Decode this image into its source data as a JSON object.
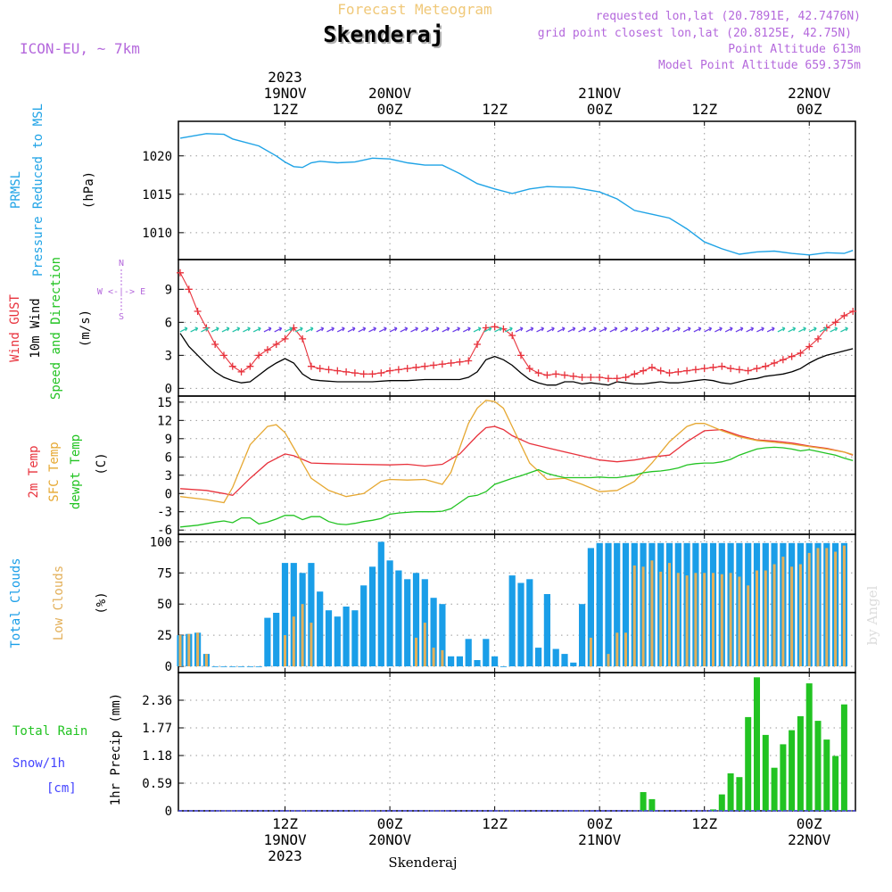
{
  "header": {
    "model": "ICON-EU, ~ 7km",
    "subtitle": "Forecast Meteogram",
    "title": "Skenderaj",
    "requested": "requested lon,lat (20.7891E, 42.7476N)",
    "gridpoint": "grid point closest lon,lat (20.8125E, 42.75N)",
    "point_alt": "Point Altitude 613m",
    "model_alt": "Model Point Altitude 659.375m",
    "footer_location": "Skenderaj",
    "watermark": "by Angel"
  },
  "time_axis": {
    "top_labels": [
      {
        "t": 12,
        "lines": [
          "2023",
          "19NOV",
          "12Z"
        ]
      },
      {
        "t": 24,
        "lines": [
          "20NOV",
          "00Z"
        ]
      },
      {
        "t": 36,
        "lines": [
          "12Z"
        ]
      },
      {
        "t": 48,
        "lines": [
          "21NOV",
          "00Z"
        ]
      },
      {
        "t": 60,
        "lines": [
          "12Z"
        ]
      },
      {
        "t": 72,
        "lines": [
          "22NOV",
          "00Z"
        ]
      }
    ],
    "bottom_labels": [
      {
        "t": 12,
        "lines": [
          "12Z",
          "19NOV",
          "2023"
        ]
      },
      {
        "t": 24,
        "lines": [
          "00Z",
          "20NOV"
        ]
      },
      {
        "t": 36,
        "lines": [
          "12Z"
        ]
      },
      {
        "t": 48,
        "lines": [
          "00Z",
          "21NOV"
        ]
      },
      {
        "t": 60,
        "lines": [
          "12Z"
        ]
      },
      {
        "t": 72,
        "lines": [
          "00Z",
          "22NOV"
        ]
      }
    ]
  },
  "panel_labels": {
    "pressure": {
      "left": [
        "PRMSL",
        "Pressure Reduced to MSL"
      ],
      "unit": "(hPa)"
    },
    "wind": {
      "gust": "Wind GUST",
      "wind10": "10m Wind",
      "speed": "Speed and Direction",
      "unit": "(m/s)",
      "compass_n": "N",
      "compass_s": "S",
      "compass_we": "W <-|-> E"
    },
    "temp": {
      "t2m": "2m Temp",
      "sfc": "SFC Temp",
      "dewpt": "dewpt Temp",
      "unit": "(C)"
    },
    "clouds": {
      "total": "Total Clouds",
      "low": "Low Clouds",
      "unit": "(%)"
    },
    "precip": {
      "rain": "Total  Rain",
      "snow": "Snow/1h",
      "cm": "[cm]",
      "axis": "1hr Precip (mm)"
    }
  },
  "colors": {
    "pressure": "#1fa3e6",
    "gust": "#e8323c",
    "wind": "#000000",
    "t2m": "#e8323c",
    "sfc": "#e6a832",
    "dewpt": "#22c322",
    "total_cloud": "#1a9ee8",
    "low_cloud": "#e3b05a",
    "rain": "#22c322",
    "snow": "#4444ff",
    "violet": "#b468dc"
  },
  "chart_data": [
    {
      "type": "line",
      "title": "PRMSL Pressure Reduced to MSL",
      "ylabel": "(hPa)",
      "yticks": [
        1010,
        1015,
        1020
      ],
      "ylim": [
        1006.5,
        1024.5
      ],
      "x_hours": [
        0,
        3,
        5,
        6,
        9,
        11,
        12,
        13,
        14,
        15,
        16,
        18,
        20,
        22,
        24,
        26,
        28,
        30,
        32,
        34,
        36,
        38,
        40,
        42,
        45,
        48,
        50,
        52,
        54,
        56,
        58,
        60,
        62,
        64,
        66,
        68,
        70,
        72,
        74,
        76,
        77
      ],
      "values": [
        1022.3,
        1022.9,
        1022.8,
        1022.2,
        1021.3,
        1020.0,
        1019.2,
        1018.6,
        1018.5,
        1019.1,
        1019.3,
        1019.1,
        1019.2,
        1019.7,
        1019.6,
        1019.1,
        1018.8,
        1018.8,
        1017.7,
        1016.4,
        1015.7,
        1015.1,
        1015.7,
        1016.0,
        1015.9,
        1015.3,
        1014.4,
        1012.9,
        1012.4,
        1011.9,
        1010.5,
        1008.8,
        1007.9,
        1007.2,
        1007.5,
        1007.6,
        1007.3,
        1007.1,
        1007.4,
        1007.3,
        1007.7
      ]
    },
    {
      "type": "line",
      "title": "Wind GUST / 10m Wind Speed and Direction",
      "ylabel": "(m/s)",
      "yticks": [
        0,
        3,
        6,
        9
      ],
      "ylim": [
        -0.7,
        11.7
      ],
      "series": [
        {
          "name": "Wind GUST",
          "x_hours": [
            0,
            1,
            2,
            3,
            4,
            5,
            6,
            7,
            8,
            9,
            10,
            11,
            12,
            13,
            14,
            15,
            16,
            17,
            18,
            19,
            20,
            21,
            22,
            23,
            24,
            25,
            26,
            27,
            28,
            29,
            30,
            31,
            32,
            33,
            34,
            35,
            36,
            37,
            38,
            39,
            40,
            41,
            42,
            43,
            44,
            45,
            46,
            47,
            48,
            49,
            50,
            51,
            52,
            53,
            54,
            55,
            56,
            57,
            58,
            59,
            60,
            61,
            62,
            63,
            64,
            65,
            66,
            67,
            68,
            69,
            70,
            71,
            72,
            73,
            74,
            75,
            76,
            77
          ],
          "values": [
            10.5,
            9.0,
            7.0,
            5.5,
            4.0,
            3.0,
            2.0,
            1.5,
            2.0,
            3.0,
            3.5,
            4.0,
            4.5,
            5.5,
            4.5,
            2.0,
            1.8,
            1.7,
            1.6,
            1.5,
            1.4,
            1.3,
            1.3,
            1.4,
            1.6,
            1.7,
            1.8,
            1.9,
            2.0,
            2.1,
            2.2,
            2.3,
            2.4,
            2.5,
            4.0,
            5.5,
            5.6,
            5.4,
            4.8,
            3.0,
            1.8,
            1.4,
            1.2,
            1.3,
            1.2,
            1.1,
            1.0,
            1.0,
            1.0,
            0.9,
            0.9,
            1.0,
            1.3,
            1.6,
            1.9,
            1.6,
            1.4,
            1.5,
            1.6,
            1.7,
            1.8,
            1.9,
            2.0,
            1.8,
            1.7,
            1.6,
            1.8,
            2.0,
            2.3,
            2.6,
            2.9,
            3.2,
            3.8,
            4.5,
            5.5,
            6.0,
            6.6,
            7.0
          ]
        },
        {
          "name": "10m Wind",
          "x_hours": [
            0,
            1,
            2,
            3,
            4,
            5,
            6,
            7,
            8,
            9,
            10,
            11,
            12,
            13,
            14,
            15,
            16,
            18,
            20,
            22,
            24,
            26,
            28,
            30,
            32,
            33,
            34,
            35,
            36,
            37,
            38,
            39,
            40,
            41,
            42,
            43,
            44,
            45,
            46,
            47,
            48,
            49,
            50,
            51,
            52,
            53,
            54,
            55,
            56,
            57,
            58,
            59,
            60,
            61,
            62,
            63,
            64,
            65,
            66,
            67,
            68,
            69,
            70,
            71,
            72,
            73,
            74,
            75,
            76,
            77
          ],
          "values": [
            5.0,
            3.8,
            3.0,
            2.2,
            1.5,
            1.0,
            0.7,
            0.5,
            0.6,
            1.2,
            1.8,
            2.3,
            2.7,
            2.3,
            1.3,
            0.8,
            0.7,
            0.6,
            0.6,
            0.6,
            0.7,
            0.7,
            0.8,
            0.8,
            0.8,
            1.0,
            1.5,
            2.6,
            2.9,
            2.6,
            2.1,
            1.4,
            0.8,
            0.5,
            0.3,
            0.3,
            0.6,
            0.6,
            0.4,
            0.5,
            0.4,
            0.3,
            0.6,
            0.5,
            0.4,
            0.4,
            0.5,
            0.6,
            0.5,
            0.5,
            0.6,
            0.7,
            0.8,
            0.7,
            0.5,
            0.4,
            0.6,
            0.8,
            0.9,
            1.1,
            1.2,
            1.3,
            1.5,
            1.8,
            2.3,
            2.7,
            3.0,
            3.2,
            3.4,
            3.6
          ]
        }
      ]
    },
    {
      "type": "line",
      "title": "2m Temp / SFC Temp / dewpt Temp",
      "ylabel": "(C)",
      "yticks": [
        -6,
        -3,
        0,
        3,
        6,
        9,
        12,
        15
      ],
      "ylim": [
        -6.7,
        16.0
      ],
      "series": [
        {
          "name": "2m Temp",
          "x_hours": [
            0,
            3,
            5,
            6,
            8,
            10,
            12,
            13,
            15,
            17,
            20,
            24,
            26,
            28,
            30,
            32,
            34,
            35,
            36,
            37,
            38,
            40,
            42,
            45,
            48,
            50,
            52,
            54,
            56,
            58,
            60,
            62,
            64,
            66,
            68,
            70,
            72,
            74,
            76,
            77
          ],
          "values": [
            0.8,
            0.5,
            0.0,
            -0.3,
            2.5,
            5.0,
            6.5,
            6.2,
            5.0,
            4.9,
            4.8,
            4.7,
            4.8,
            4.5,
            4.8,
            6.5,
            9.5,
            10.8,
            11.0,
            10.5,
            9.5,
            8.2,
            7.5,
            6.5,
            5.5,
            5.2,
            5.5,
            6.0,
            6.3,
            8.5,
            10.3,
            10.5,
            9.5,
            8.8,
            8.6,
            8.3,
            7.8,
            7.4,
            6.8,
            6.3
          ]
        },
        {
          "name": "SFC Temp",
          "x_hours": [
            0,
            3,
            5,
            6,
            8,
            10,
            11,
            12,
            13,
            15,
            17,
            19,
            21,
            23,
            24,
            26,
            28,
            30,
            31,
            32,
            33,
            34,
            35,
            36,
            37,
            38,
            40,
            42,
            44,
            46,
            48,
            50,
            52,
            54,
            56,
            58,
            59,
            60,
            62,
            64,
            66,
            68,
            70,
            72,
            74,
            76,
            77
          ],
          "values": [
            -0.5,
            -1.0,
            -1.5,
            1.0,
            8.0,
            11.0,
            11.3,
            10.0,
            7.5,
            2.5,
            0.5,
            -0.5,
            0.0,
            2.0,
            2.3,
            2.2,
            2.3,
            1.5,
            3.5,
            7.5,
            11.5,
            14.0,
            15.3,
            15.1,
            14.0,
            11.0,
            5.0,
            2.3,
            2.5,
            1.5,
            0.3,
            0.5,
            2.0,
            5.0,
            8.5,
            11.0,
            11.5,
            11.5,
            10.3,
            9.3,
            8.7,
            8.4,
            8.1,
            7.7,
            7.3,
            6.8,
            6.4
          ]
        },
        {
          "name": "dewpt Temp",
          "x_hours": [
            0,
            2,
            4,
            5,
            6,
            7,
            8,
            9,
            10,
            11,
            12,
            13,
            14,
            15,
            16,
            17,
            18,
            19,
            20,
            21,
            22,
            23,
            24,
            25,
            26,
            27,
            28,
            29,
            30,
            31,
            32,
            33,
            34,
            35,
            36,
            37,
            38,
            39,
            40,
            41,
            42,
            43,
            44,
            45,
            46,
            47,
            48,
            49,
            50,
            51,
            52,
            53,
            54,
            55,
            56,
            57,
            58,
            59,
            60,
            61,
            62,
            63,
            64,
            65,
            66,
            67,
            68,
            69,
            70,
            71,
            72,
            73,
            74,
            75,
            76,
            77
          ],
          "values": [
            -5.5,
            -5.2,
            -4.7,
            -4.5,
            -4.8,
            -4.0,
            -4.0,
            -5.0,
            -4.7,
            -4.2,
            -3.6,
            -3.6,
            -4.3,
            -3.8,
            -3.8,
            -4.6,
            -5.0,
            -5.1,
            -4.9,
            -4.6,
            -4.4,
            -4.1,
            -3.4,
            -3.2,
            -3.1,
            -3.0,
            -3.0,
            -3.0,
            -2.9,
            -2.5,
            -1.5,
            -0.5,
            -0.3,
            0.3,
            1.5,
            2.0,
            2.5,
            2.9,
            3.4,
            3.9,
            3.3,
            2.9,
            2.6,
            2.6,
            2.6,
            2.6,
            2.7,
            2.6,
            2.6,
            2.8,
            3.0,
            3.4,
            3.6,
            3.7,
            3.9,
            4.2,
            4.7,
            4.9,
            5.0,
            5.0,
            5.2,
            5.6,
            6.3,
            6.8,
            7.3,
            7.5,
            7.6,
            7.5,
            7.3,
            7.0,
            7.2,
            6.9,
            6.6,
            6.3,
            5.8,
            5.4
          ]
        }
      ]
    },
    {
      "type": "bar",
      "title": "Total Clouds / Low Clouds",
      "ylabel": "(%)",
      "yticks": [
        0,
        25,
        50,
        75,
        100
      ],
      "ylim": [
        -5,
        106
      ],
      "x_hours_start": 0,
      "series": [
        {
          "name": "Total Clouds",
          "values": [
            25,
            26,
            27,
            10,
            0,
            0,
            0,
            0,
            0,
            0,
            39,
            43,
            83,
            83,
            75,
            83,
            60,
            45,
            40,
            48,
            45,
            65,
            80,
            100,
            85,
            77,
            70,
            75,
            70,
            55,
            50,
            8,
            8,
            22,
            5,
            22,
            8,
            0,
            73,
            67,
            70,
            15,
            58,
            14,
            10,
            3,
            50,
            95,
            99,
            99,
            99,
            99,
            99,
            99,
            99,
            99,
            99,
            99,
            99,
            99,
            99,
            99,
            99,
            99,
            99,
            99,
            99,
            99,
            99,
            99,
            99,
            99,
            99,
            99,
            99,
            99,
            99
          ]
        },
        {
          "name": "Low Clouds",
          "values": [
            25,
            26,
            27,
            10,
            0,
            0,
            0,
            0,
            0,
            0,
            0,
            0,
            25,
            40,
            50,
            35,
            0,
            0,
            0,
            0,
            0,
            0,
            0,
            0,
            0,
            0,
            0,
            23,
            35,
            15,
            13,
            0,
            0,
            0,
            0,
            0,
            0,
            0,
            0,
            0,
            0,
            0,
            0,
            0,
            0,
            0,
            0,
            23,
            0,
            10,
            27,
            27,
            81,
            80,
            85,
            76,
            83,
            75,
            73,
            75,
            75,
            75,
            74,
            75,
            72,
            65,
            77,
            77,
            82,
            88,
            80,
            82,
            91,
            95,
            95,
            92,
            97
          ]
        }
      ]
    },
    {
      "type": "bar",
      "title": "1hr Precip (mm)",
      "ylabel": "1hr Precip (mm)",
      "yticks": [
        0,
        0.59,
        1.18,
        1.77,
        2.36
      ],
      "ylim": [
        0,
        2.95
      ],
      "x_hours_start": 0,
      "series": [
        {
          "name": "Total Rain",
          "values": [
            0,
            0,
            0,
            0,
            0,
            0,
            0,
            0,
            0,
            0,
            0,
            0,
            0,
            0,
            0,
            0,
            0,
            0,
            0,
            0,
            0,
            0,
            0,
            0,
            0,
            0,
            0,
            0,
            0,
            0,
            0,
            0,
            0,
            0,
            0,
            0,
            0,
            0,
            0,
            0,
            0,
            0,
            0,
            0,
            0,
            0,
            0,
            0,
            0,
            0,
            0,
            0,
            0,
            0.4,
            0.25,
            0,
            0,
            0,
            0,
            0,
            0,
            0.03,
            0.35,
            0.8,
            0.72,
            2.0,
            2.85,
            1.62,
            0.92,
            1.42,
            1.72,
            2.02,
            2.72,
            1.92,
            1.52,
            1.17,
            2.27
          ]
        }
      ]
    }
  ]
}
